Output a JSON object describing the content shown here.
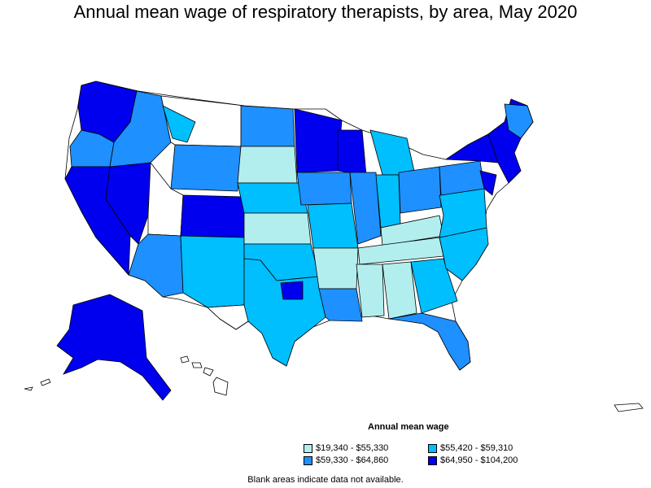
{
  "title": "Annual mean wage of respiratory therapists, by area, May 2020",
  "legend": {
    "title": "Annual mean wage",
    "items": [
      {
        "label": "$19,340 - $55,330",
        "color": "#b2eeee"
      },
      {
        "label": "$55,420 - $59,310",
        "color": "#00bfff"
      },
      {
        "label": "$59,330 - $64,860",
        "color": "#1e90ff"
      },
      {
        "label": "$64,950 - $104,200",
        "color": "#0000ee"
      }
    ]
  },
  "note": "Blank areas indicate data not available."
}
